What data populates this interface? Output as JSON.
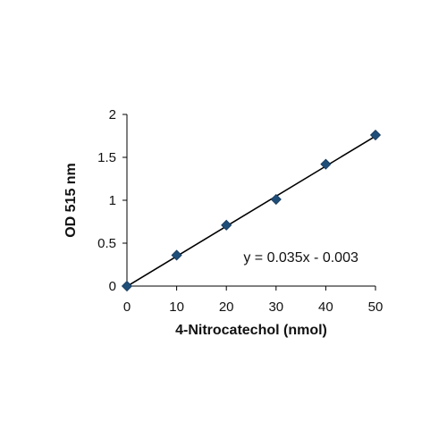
{
  "chart_data": {
    "type": "scatter",
    "xlabel": "4-Nitrocatechol (nmol)",
    "ylabel": "OD 515 nm",
    "xlim": [
      0,
      50
    ],
    "ylim": [
      0,
      2
    ],
    "x_ticks": [
      "0",
      "10",
      "20",
      "30",
      "40",
      "50"
    ],
    "y_ticks": [
      "0",
      "0.5",
      "1",
      "1.5",
      "2"
    ],
    "grid": false,
    "legend": "none",
    "series": [
      {
        "x": [
          0,
          10,
          20,
          30,
          40,
          50
        ],
        "y": [
          0,
          0.36,
          0.71,
          1.01,
          1.42,
          1.76
        ],
        "color": "#1f4e79",
        "marker": "diamond"
      }
    ],
    "trendline": {
      "x": [
        0,
        50
      ],
      "y": [
        -0.003,
        1.747
      ],
      "color": "#000000"
    },
    "annotations": [
      {
        "text": "y = 0.035x - 0.003",
        "x": 35,
        "y": 0.28
      }
    ]
  }
}
